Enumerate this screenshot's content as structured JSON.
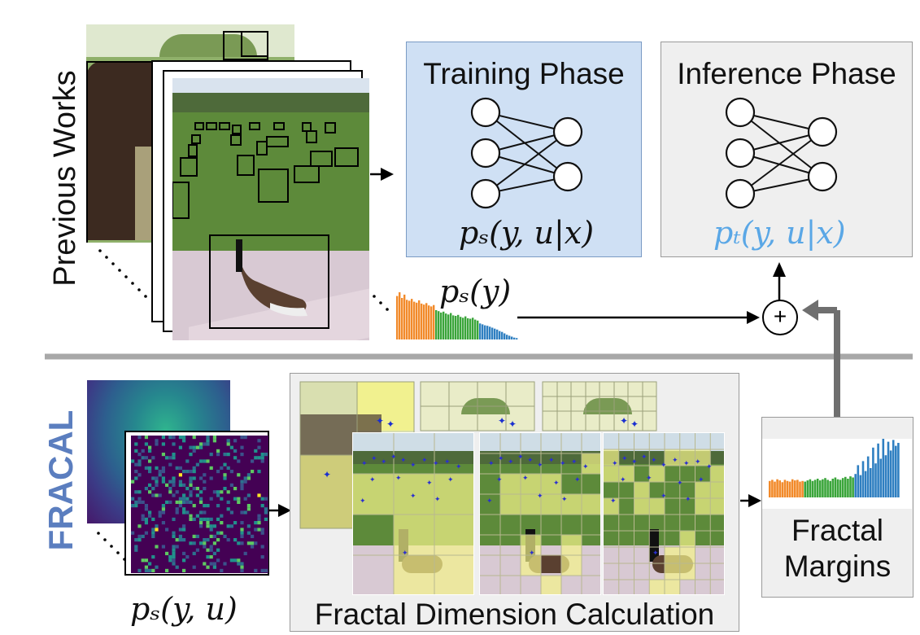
{
  "top": {
    "side_label": "Previous Works",
    "training_box": {
      "title": "Training Phase",
      "formula": "pₛ(y, u|x)"
    },
    "inference_box": {
      "title": "Inference Phase",
      "formula": "pₜ(y, u|x)"
    },
    "prior_formula": "pₛ(y)",
    "prior_bars": [
      {
        "color": "#f28a2a",
        "values": [
          0.92,
          1.0,
          0.88,
          0.95,
          0.84,
          0.82,
          0.86,
          0.8,
          0.78,
          0.83,
          0.76,
          0.74,
          0.77,
          0.72,
          0.7,
          0.73
        ]
      },
      {
        "color": "#3aa53a",
        "values": [
          0.62,
          0.6,
          0.57,
          0.59,
          0.55,
          0.53,
          0.56,
          0.51,
          0.5,
          0.52,
          0.48,
          0.46,
          0.49,
          0.45,
          0.44,
          0.46,
          0.42,
          0.4
        ]
      },
      {
        "color": "#2f7fc1",
        "values": [
          0.34,
          0.32,
          0.3,
          0.29,
          0.27,
          0.25,
          0.23,
          0.21,
          0.18,
          0.16,
          0.13,
          0.1,
          0.08,
          0.06,
          0.04,
          0.03
        ]
      }
    ],
    "plus_symbol": "+"
  },
  "bottom": {
    "side_label": "FRACAL",
    "side_label_color": "#5b7ebf",
    "heatmap_formula": "pₛ(y, u)",
    "process_caption": "Fractal Dimension Calculation",
    "result_caption_line1": "Fractal",
    "result_caption_line2": "Margins",
    "margin_bars": [
      {
        "color": "#f28a2a",
        "values": [
          0.28,
          0.3,
          0.27,
          0.31,
          0.29,
          0.26,
          0.3,
          0.28,
          0.27,
          0.31,
          0.29,
          0.3,
          0.27,
          0.28
        ]
      },
      {
        "color": "#3aa53a",
        "values": [
          0.27,
          0.29,
          0.31,
          0.28,
          0.3,
          0.32,
          0.29,
          0.31,
          0.33,
          0.3,
          0.28,
          0.32,
          0.34,
          0.31,
          0.3,
          0.33,
          0.35,
          0.32,
          0.36,
          0.34
        ]
      },
      {
        "color": "#2f7fc1",
        "values": [
          0.4,
          0.55,
          0.38,
          0.62,
          0.45,
          0.7,
          0.5,
          0.85,
          0.58,
          0.92,
          0.66,
          1.0,
          0.72,
          0.95,
          0.8,
          0.98,
          0.88,
          0.93
        ]
      }
    ]
  },
  "colors": {
    "training_fill": "#cfe0f4",
    "inference_fill": "#efefef",
    "inference_formula": "#5aa7e6",
    "divider": "#a8a8a8",
    "up_arrow": "#6f6f6f"
  }
}
